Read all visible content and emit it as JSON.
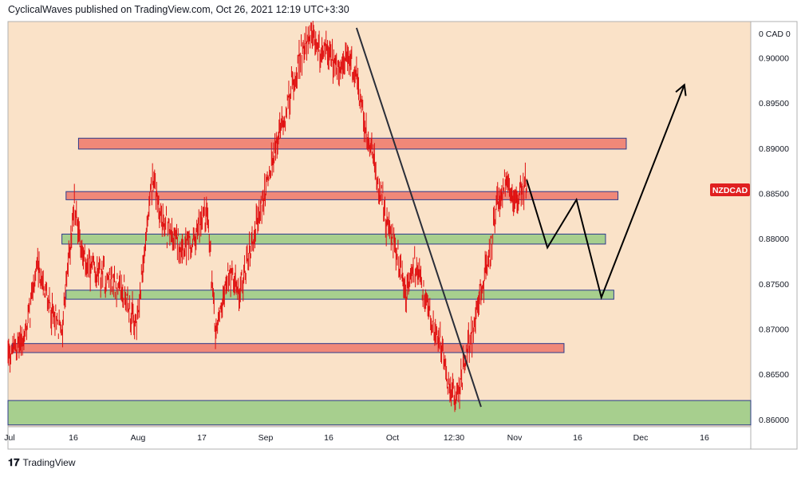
{
  "header": {
    "publisher": "CyclicalWaves",
    "platform_text": "published on TradingView.com, Oct 26, 2021 12:19 UTC+3:30"
  },
  "footer": {
    "brand": "TradingView",
    "logo_glyph": "17"
  },
  "colors": {
    "background": "#fae2c8",
    "candle": "#e01010",
    "resistance_zone": "#f08878",
    "support_zone": "#a7cf8e",
    "zone_border": "#2c3a8c",
    "projection": "#000000",
    "symbol_badge": "#e02020"
  },
  "chart_data": {
    "type": "candlestick",
    "symbol": "NZDCAD",
    "currency_label": "0 CAD 0",
    "x_ticks": [
      "Jul",
      "16",
      "Aug",
      "17",
      "Sep",
      "16",
      "Oct",
      "12:30",
      "Nov",
      "16",
      "Dec",
      "16"
    ],
    "y_ticks": [
      "0.90000",
      "0.89500",
      "0.89000",
      "0.88500",
      "0.88000",
      "0.87500",
      "0.87000",
      "0.86500",
      "0.86000"
    ],
    "ylim": [
      0.8592,
      0.904
    ],
    "x_range": [
      "2021-07-01",
      "2021-12-27"
    ],
    "price_path": [
      [
        "2021-07-01",
        0.867
      ],
      [
        "2021-07-05",
        0.869
      ],
      [
        "2021-07-08",
        0.877
      ],
      [
        "2021-07-12",
        0.871
      ],
      [
        "2021-07-14",
        0.87
      ],
      [
        "2021-07-17",
        0.884
      ],
      [
        "2021-07-19",
        0.878
      ],
      [
        "2021-07-22",
        0.876
      ],
      [
        "2021-07-26",
        0.8755
      ],
      [
        "2021-07-29",
        0.874
      ],
      [
        "2021-08-01",
        0.87
      ],
      [
        "2021-08-03",
        0.879
      ],
      [
        "2021-08-05",
        0.887
      ],
      [
        "2021-08-07",
        0.882
      ],
      [
        "2021-08-10",
        0.88
      ],
      [
        "2021-08-14",
        0.879
      ],
      [
        "2021-08-16",
        0.881
      ],
      [
        "2021-08-18",
        0.883
      ],
      [
        "2021-08-20",
        0.87
      ],
      [
        "2021-08-23",
        0.876
      ],
      [
        "2021-08-26",
        0.874
      ],
      [
        "2021-08-29",
        0.88
      ],
      [
        "2021-09-01",
        0.885
      ],
      [
        "2021-09-04",
        0.891
      ],
      [
        "2021-09-07",
        0.896
      ],
      [
        "2021-09-10",
        0.901
      ],
      [
        "2021-09-12",
        0.902
      ],
      [
        "2021-09-14",
        0.901
      ],
      [
        "2021-09-17",
        0.9
      ],
      [
        "2021-09-19",
        0.898
      ],
      [
        "2021-09-21",
        0.9
      ],
      [
        "2021-09-23",
        0.898
      ],
      [
        "2021-09-25",
        0.892
      ],
      [
        "2021-09-27",
        0.889
      ],
      [
        "2021-09-30",
        0.882
      ],
      [
        "2021-10-03",
        0.878
      ],
      [
        "2021-10-05",
        0.874
      ],
      [
        "2021-10-07",
        0.877
      ],
      [
        "2021-10-09",
        0.874
      ],
      [
        "2021-10-11",
        0.871
      ],
      [
        "2021-10-13",
        0.869
      ],
      [
        "2021-10-15",
        0.864
      ],
      [
        "2021-10-17",
        0.8625
      ],
      [
        "2021-10-19",
        0.866
      ],
      [
        "2021-10-21",
        0.87
      ],
      [
        "2021-10-23",
        0.874
      ],
      [
        "2021-10-25",
        0.878
      ],
      [
        "2021-10-27",
        0.884
      ],
      [
        "2021-10-29",
        0.886
      ],
      [
        "2021-10-31",
        0.884
      ],
      [
        "2021-11-02",
        0.8855
      ],
      [
        "2021-11-03",
        0.886
      ]
    ],
    "zones": [
      {
        "kind": "resistance",
        "low": 0.8899,
        "high": 0.8911,
        "from": "2021-07-18",
        "to": "2021-11-27"
      },
      {
        "kind": "resistance",
        "low": 0.8843,
        "high": 0.8852,
        "from": "2021-07-15",
        "to": "2021-11-25"
      },
      {
        "kind": "support",
        "low": 0.8794,
        "high": 0.8805,
        "from": "2021-07-14",
        "to": "2021-11-22"
      },
      {
        "kind": "support",
        "low": 0.8733,
        "high": 0.8743,
        "from": "2021-07-15",
        "to": "2021-11-24"
      },
      {
        "kind": "resistance",
        "low": 0.8674,
        "high": 0.8684,
        "from": "2021-07-02",
        "to": "2021-11-12"
      },
      {
        "kind": "support",
        "low": 0.8594,
        "high": 0.8621,
        "from": "2021-07-01",
        "to": "2021-12-27"
      }
    ],
    "trendline": [
      [
        "2021-09-23",
        0.9033
      ],
      [
        "2021-10-23",
        0.8614
      ]
    ],
    "projection_path": [
      [
        "2021-11-03",
        0.8865
      ],
      [
        "2021-11-08",
        0.879
      ],
      [
        "2021-11-15",
        0.8843
      ],
      [
        "2021-11-21",
        0.8735
      ],
      [
        "2021-12-11",
        0.897
      ]
    ]
  }
}
